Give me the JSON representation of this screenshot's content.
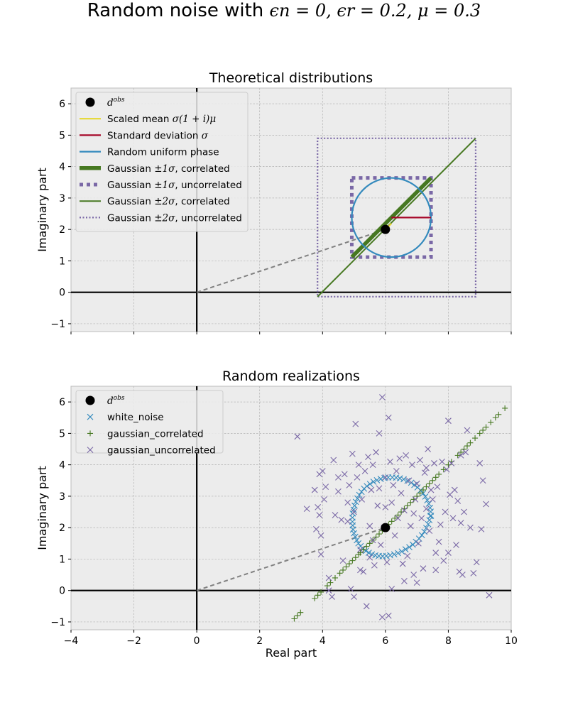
{
  "figure": {
    "title_prefix": "Random noise with ",
    "title_math": "ϵn = 0, ϵr = 0.2, μ = 0.3"
  },
  "chart_data": [
    {
      "type": "line",
      "title": "Theoretical distributions",
      "xlabel": "",
      "ylabel": "Imaginary part",
      "xlim": [
        -4,
        10
      ],
      "ylim": [
        -1.25,
        6.5
      ],
      "xticks": [
        -4,
        -2,
        0,
        2,
        4,
        6,
        8,
        10
      ],
      "xtick_labels_visible": false,
      "yticks": [
        -1,
        0,
        1,
        2,
        3,
        4,
        5,
        6
      ],
      "grid": true,
      "legend_position": "top-left",
      "d_obs": [
        6,
        2
      ],
      "series": [
        {
          "name": "d^obs",
          "kind": "point",
          "color": "#000000",
          "x": [
            6
          ],
          "y": [
            2
          ]
        },
        {
          "name": "Scaled mean σ(1+i)μ",
          "kind": "line",
          "color": "#e5d731",
          "x": [
            6,
            6.19
          ],
          "y": [
            2,
            2.19
          ]
        },
        {
          "name": "Standard deviation σ",
          "kind": "line",
          "color": "#a60628",
          "x": [
            6.19,
            7.45
          ],
          "y": [
            2.38,
            2.38
          ]
        },
        {
          "name": "Random uniform phase",
          "kind": "circle",
          "color": "#348abd",
          "center": [
            6.19,
            2.38
          ],
          "radius": 1.26
        },
        {
          "name": "Gaussian ±1σ, correlated",
          "kind": "line",
          "color": "#467821",
          "x": [
            4.93,
            7.45
          ],
          "y": [
            1.12,
            3.64
          ]
        },
        {
          "name": "Gaussian ±1σ, uncorrelated",
          "kind": "box",
          "color": "#7a68a6",
          "x": [
            4.93,
            7.45
          ],
          "y": [
            1.12,
            3.64
          ]
        },
        {
          "name": "Gaussian ±2σ, correlated",
          "kind": "line",
          "color": "#467821",
          "x": [
            3.84,
            8.87
          ],
          "y": [
            -0.14,
            4.9
          ]
        },
        {
          "name": "Gaussian ±2σ, uncorrelated",
          "kind": "box",
          "color": "#7a68a6",
          "x": [
            3.84,
            8.87
          ],
          "y": [
            -0.14,
            4.9
          ]
        }
      ],
      "legend_labels": [
        "d^obs",
        "Scaled mean σ(1+i)μ",
        "Standard deviation σ",
        "Random uniform phase",
        "Gaussian ±1σ, correlated",
        "Gaussian ±1σ, uncorrelated",
        "Gaussian ±2σ, correlated",
        "Gaussian ±2σ, uncorrelated"
      ]
    },
    {
      "type": "scatter",
      "title": "Random realizations",
      "xlabel": "Real part",
      "ylabel": "Imaginary part",
      "xlim": [
        -4,
        10
      ],
      "ylim": [
        -1.25,
        6.5
      ],
      "xticks": [
        -4,
        -2,
        0,
        2,
        4,
        6,
        8,
        10
      ],
      "yticks": [
        -1,
        0,
        1,
        2,
        3,
        4,
        5,
        6
      ],
      "grid": true,
      "legend_position": "top-left",
      "d_obs": [
        6,
        2
      ],
      "series": [
        {
          "name": "d^obs",
          "marker": "circle",
          "color": "#000000",
          "x": [
            6
          ],
          "y": [
            2
          ]
        },
        {
          "name": "white_noise",
          "marker": "x",
          "color": "#348abd",
          "x": [
            7.45,
            7.44,
            7.42,
            7.38,
            7.33,
            7.27,
            7.2,
            7.12,
            7.02,
            6.92,
            6.82,
            6.7,
            6.58,
            6.46,
            6.34,
            6.22,
            6.09,
            5.97,
            5.85,
            5.73,
            5.62,
            5.51,
            5.41,
            5.32,
            5.24,
            5.17,
            5.11,
            5.06,
            5.02,
            4.99,
            4.96,
            4.95,
            4.95,
            4.96,
            4.97,
            5.0,
            5.04,
            5.09,
            5.14,
            5.21,
            5.29,
            5.38,
            5.47,
            5.57,
            5.68,
            5.79,
            5.91,
            6.03,
            6.15,
            6.28,
            6.4,
            6.52,
            6.64,
            6.76,
            6.87,
            6.97,
            7.07,
            7.16,
            7.24,
            7.3,
            7.36,
            7.4,
            7.43
          ],
          "y": [
            2.38,
            2.51,
            2.63,
            2.76,
            2.87,
            2.99,
            3.09,
            3.19,
            3.28,
            3.36,
            3.43,
            3.49,
            3.54,
            3.57,
            3.59,
            3.6,
            3.6,
            3.58,
            3.55,
            3.51,
            3.46,
            3.39,
            3.32,
            3.24,
            3.14,
            3.04,
            2.93,
            2.82,
            2.7,
            2.57,
            2.45,
            2.32,
            2.19,
            2.07,
            1.94,
            1.82,
            1.71,
            1.6,
            1.5,
            1.41,
            1.33,
            1.26,
            1.2,
            1.15,
            1.12,
            1.1,
            1.09,
            1.1,
            1.12,
            1.15,
            1.19,
            1.24,
            1.31,
            1.38,
            1.46,
            1.55,
            1.65,
            1.76,
            1.87,
            1.99,
            2.11,
            2.24,
            2.37
          ]
        },
        {
          "name": "gaussian_correlated",
          "marker": "+",
          "color": "#467821",
          "x": [
            3.1,
            3.2,
            3.3,
            3.75,
            3.85,
            3.95,
            4.15,
            4.25,
            4.4,
            4.55,
            4.65,
            4.75,
            4.85,
            4.95,
            5.05,
            5.15,
            5.2,
            5.3,
            5.4,
            5.5,
            5.6,
            5.7,
            5.8,
            5.9,
            6.0,
            6.1,
            6.2,
            6.3,
            6.4,
            6.5,
            6.6,
            6.7,
            6.8,
            6.9,
            7.0,
            7.1,
            7.2,
            7.3,
            7.4,
            7.5,
            7.6,
            7.7,
            7.85,
            8.0,
            8.1,
            8.3,
            8.4,
            8.5,
            8.6,
            8.7,
            8.85,
            9.0,
            9.1,
            9.2,
            9.35,
            9.5,
            9.6,
            9.8
          ],
          "y": [
            -0.9,
            -0.8,
            -0.7,
            -0.25,
            -0.15,
            -0.05,
            0.15,
            0.25,
            0.4,
            0.55,
            0.65,
            0.75,
            0.85,
            0.95,
            1.05,
            1.15,
            1.2,
            1.3,
            1.4,
            1.5,
            1.6,
            1.7,
            1.8,
            1.9,
            2.0,
            2.1,
            2.2,
            2.3,
            2.4,
            2.5,
            2.6,
            2.7,
            2.8,
            2.9,
            3.0,
            3.1,
            3.2,
            3.3,
            3.4,
            3.5,
            3.6,
            3.7,
            3.85,
            4.0,
            4.1,
            4.3,
            4.4,
            4.5,
            4.6,
            4.7,
            4.85,
            5.0,
            5.1,
            5.2,
            5.35,
            5.5,
            5.6,
            5.8
          ]
        },
        {
          "name": "gaussian_uncorrelated",
          "marker": "x",
          "color": "#7a68a6",
          "x": [
            3.2,
            3.5,
            3.75,
            3.8,
            3.85,
            3.9,
            3.9,
            3.95,
            4.0,
            4.05,
            4.1,
            4.2,
            4.3,
            4.35,
            4.4,
            4.5,
            4.6,
            4.65,
            4.7,
            4.8,
            4.85,
            4.9,
            4.95,
            5.0,
            5.05,
            5.1,
            5.15,
            5.2,
            5.25,
            5.3,
            5.35,
            5.4,
            5.45,
            5.5,
            5.55,
            5.6,
            5.65,
            5.7,
            5.75,
            5.8,
            5.85,
            5.9,
            5.95,
            6.0,
            6.05,
            6.1,
            6.15,
            6.2,
            6.25,
            6.3,
            6.35,
            6.4,
            6.45,
            6.5,
            6.55,
            6.6,
            6.65,
            6.7,
            6.75,
            6.8,
            6.85,
            6.9,
            6.95,
            7.0,
            7.05,
            7.1,
            7.15,
            7.2,
            7.25,
            7.3,
            7.35,
            7.4,
            7.45,
            7.5,
            7.55,
            7.6,
            7.65,
            7.7,
            7.75,
            7.8,
            7.85,
            7.9,
            7.95,
            8.0,
            8.05,
            8.1,
            8.15,
            8.2,
            8.25,
            8.3,
            8.35,
            8.4,
            8.45,
            8.5,
            8.55,
            8.6,
            8.7,
            8.8,
            8.9,
            9.0,
            9.05,
            9.1,
            9.2,
            9.3,
            5.9,
            6.1,
            5.8,
            6.2,
            5.0,
            6.6,
            7.3,
            5.2,
            8.4,
            4.5,
            3.95,
            5.6,
            6.0,
            4.2,
            7.0,
            7.6,
            5.5,
            6.9,
            8.0,
            4.8
          ],
          "y": [
            4.9,
            2.6,
            3.2,
            1.95,
            2.65,
            3.7,
            2.4,
            1.15,
            3.8,
            2.9,
            3.3,
            0.0,
            -0.2,
            4.15,
            2.4,
            3.6,
            2.25,
            0.95,
            3.7,
            2.8,
            3.35,
            0.05,
            4.35,
            2.5,
            5.3,
            3.6,
            4.0,
            1.3,
            2.9,
            0.6,
            3.8,
            -0.5,
            4.25,
            2.05,
            3.2,
            4.0,
            0.8,
            4.4,
            2.7,
            3.25,
            1.45,
            6.15,
            2.0,
            3.6,
            0.9,
            5.5,
            4.1,
            2.8,
            3.35,
            1.75,
            3.8,
            2.3,
            4.2,
            3.1,
            0.85,
            2.55,
            4.3,
            1.1,
            3.5,
            2.05,
            4.0,
            0.5,
            2.9,
            3.4,
            1.5,
            4.15,
            2.3,
            0.7,
            3.75,
            2.6,
            4.5,
            1.9,
            3.2,
            2.9,
            4.05,
            0.65,
            3.3,
            1.55,
            2.1,
            4.1,
            0.95,
            2.5,
            3.85,
            5.4,
            3.05,
            4.05,
            2.3,
            3.2,
            1.45,
            2.85,
            0.6,
            4.3,
            0.5,
            2.5,
            4.4,
            5.1,
            2.0,
            0.55,
            0.9,
            4.05,
            1.95,
            3.5,
            2.75,
            -0.15,
            -0.85,
            -0.8,
            5.0,
            0.05,
            -0.2,
            0.3,
            3.9,
            0.65,
            2.15,
            3.15,
            1.75,
            1.6,
            2.65,
            0.4,
            0.25,
            1.2,
            1.05,
            2.45,
            1.2,
            2.2
          ]
        }
      ],
      "legend_labels": [
        "d^obs",
        "white_noise",
        "gaussian_correlated",
        "gaussian_uncorrelated"
      ]
    }
  ]
}
